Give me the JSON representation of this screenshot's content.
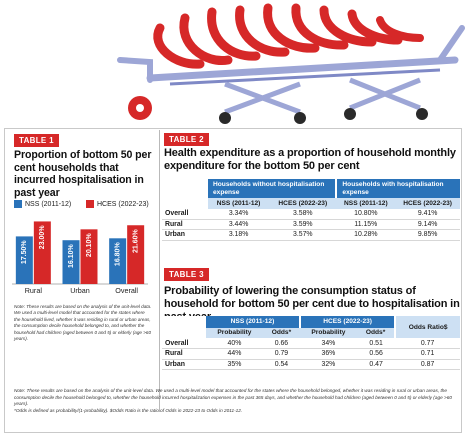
{
  "table1": {
    "tag": "TABLE 1",
    "title": "Proportion of bottom 50 per cent households that incurred hospitalisation in past year",
    "legend": [
      {
        "name": "NSS (2011-12)",
        "color": "#2a73b9"
      },
      {
        "name": "HCES (2022-23)",
        "color": "#d62828"
      }
    ],
    "note": "Note: These results are based on the analysis of the unit-level data. We used a multi-level model that accounted for the states where the household lived, whether it was residing in rural or urban areas, the consumption decile household belonged to, and whether the household had children (aged between 0 and 5) or elderly (age >60 years)."
  },
  "chart_data": {
    "type": "bar",
    "categories": [
      "Rural",
      "Urban",
      "Overall"
    ],
    "series": [
      {
        "name": "NSS (2011-12)",
        "values": [
          17.5,
          16.1,
          16.8
        ],
        "labels": [
          "17.50%",
          "16.10%",
          "16.80%"
        ],
        "color": "#2a73b9"
      },
      {
        "name": "HCES (2022-23)",
        "values": [
          23.0,
          20.1,
          21.6
        ],
        "labels": [
          "23.00%",
          "20.10%",
          "21.60%"
        ],
        "color": "#d62828"
      }
    ],
    "title": "",
    "xlabel": "",
    "ylabel": "",
    "ylim": [
      0,
      25
    ],
    "grid": false
  },
  "table2": {
    "tag": "TABLE 2",
    "title": "Health expenditure as a proportion of household monthly expenditure for the bottom 50 per cent",
    "group_headers": [
      "Households without hospitalisation expense",
      "Households with hospitalisation expense"
    ],
    "sub_headers": [
      "NSS (2011-12)",
      "HCES (2022-23)",
      "NSS (2011-12)",
      "HCES (2022-23)"
    ],
    "rows": [
      {
        "label": "Overall",
        "values": [
          "3.34%",
          "3.58%",
          "10.80%",
          "9.41%"
        ]
      },
      {
        "label": "Rural",
        "values": [
          "3.44%",
          "3.59%",
          "11.15%",
          "9.14%"
        ]
      },
      {
        "label": "Urban",
        "values": [
          "3.18%",
          "3.57%",
          "10.28%",
          "9.85%"
        ]
      }
    ]
  },
  "table3": {
    "tag": "TABLE 3",
    "title": "Probability of lowering the consumption status of household for bottom 50 per cent due to hospitalisation in past year",
    "group_headers": [
      "NSS (2011-12)",
      "HCES (2022-23)",
      "Odds Ratio$"
    ],
    "sub_headers": [
      "Probability",
      "Odds*",
      "Probability",
      "Odds*"
    ],
    "rows": [
      {
        "label": "Overall",
        "values": [
          "40%",
          "0.66",
          "34%",
          "0.51",
          "0.77"
        ]
      },
      {
        "label": "Rural",
        "values": [
          "44%",
          "0.79",
          "36%",
          "0.56",
          "0.71"
        ]
      },
      {
        "label": "Urban",
        "values": [
          "35%",
          "0.54",
          "32%",
          "0.47",
          "0.87"
        ]
      }
    ]
  },
  "footnote": {
    "line1": "Note: These results are based on the analysis of the unit-level data. We used a multi-level model that accounted for the states where the household belonged, whether it was residing in rural or urban areas, the consumption decile the household belonged to, whether the household incurred hospitalization expenses in the past 365 days, and whether the household had children (aged between 0 and 5) or elderly (age >60 years).",
    "line2": "*Odds is defined as probability/(1-probability). $Odds Ratio is the ratio of Odds in 2022-23 to Odds in 2011-12."
  },
  "colors": {
    "accent_red": "#d62828",
    "accent_blue": "#2a73b9",
    "header_light": "#cde0f3"
  }
}
